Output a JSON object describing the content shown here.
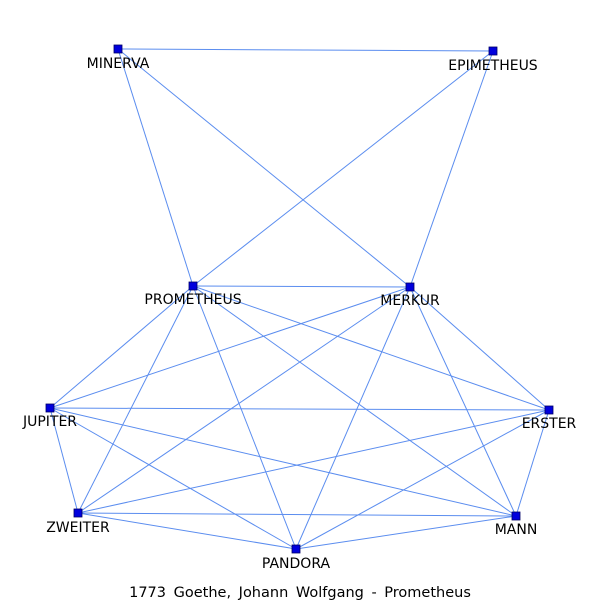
{
  "graph": {
    "nodes": [
      {
        "id": "MINERVA",
        "label": "MINERVA"
      },
      {
        "id": "EPIMETHEUS",
        "label": "EPIMETHEUS"
      },
      {
        "id": "PROMETHEUS",
        "label": "PROMETHEUS"
      },
      {
        "id": "MERKUR",
        "label": "MERKUR"
      },
      {
        "id": "JUPITER",
        "label": "JUPITER"
      },
      {
        "id": "ERSTER",
        "label": "ERSTER"
      },
      {
        "id": "ZWEITER",
        "label": "ZWEITER"
      },
      {
        "id": "MANN",
        "label": "MANN"
      },
      {
        "id": "PANDORA",
        "label": "PANDORA"
      }
    ],
    "edges": [
      [
        "MINERVA",
        "EPIMETHEUS"
      ],
      [
        "MINERVA",
        "PROMETHEUS"
      ],
      [
        "MINERVA",
        "MERKUR"
      ],
      [
        "EPIMETHEUS",
        "PROMETHEUS"
      ],
      [
        "EPIMETHEUS",
        "MERKUR"
      ],
      [
        "PROMETHEUS",
        "MERKUR"
      ],
      [
        "PROMETHEUS",
        "JUPITER"
      ],
      [
        "PROMETHEUS",
        "ZWEITER"
      ],
      [
        "PROMETHEUS",
        "PANDORA"
      ],
      [
        "PROMETHEUS",
        "MANN"
      ],
      [
        "PROMETHEUS",
        "ERSTER"
      ],
      [
        "MERKUR",
        "JUPITER"
      ],
      [
        "MERKUR",
        "ZWEITER"
      ],
      [
        "MERKUR",
        "PANDORA"
      ],
      [
        "MERKUR",
        "MANN"
      ],
      [
        "MERKUR",
        "ERSTER"
      ],
      [
        "JUPITER",
        "ERSTER"
      ],
      [
        "JUPITER",
        "ZWEITER"
      ],
      [
        "JUPITER",
        "PANDORA"
      ],
      [
        "JUPITER",
        "MANN"
      ],
      [
        "ERSTER",
        "ZWEITER"
      ],
      [
        "ERSTER",
        "PANDORA"
      ],
      [
        "ERSTER",
        "MANN"
      ],
      [
        "ZWEITER",
        "MANN"
      ],
      [
        "ZWEITER",
        "PANDORA"
      ],
      [
        "PANDORA",
        "MANN"
      ]
    ]
  },
  "caption": "1773 Goethe, Johann Wolfgang - Prometheus",
  "colors": {
    "edge": "#5b8def",
    "node_fill": "#0000dd"
  }
}
